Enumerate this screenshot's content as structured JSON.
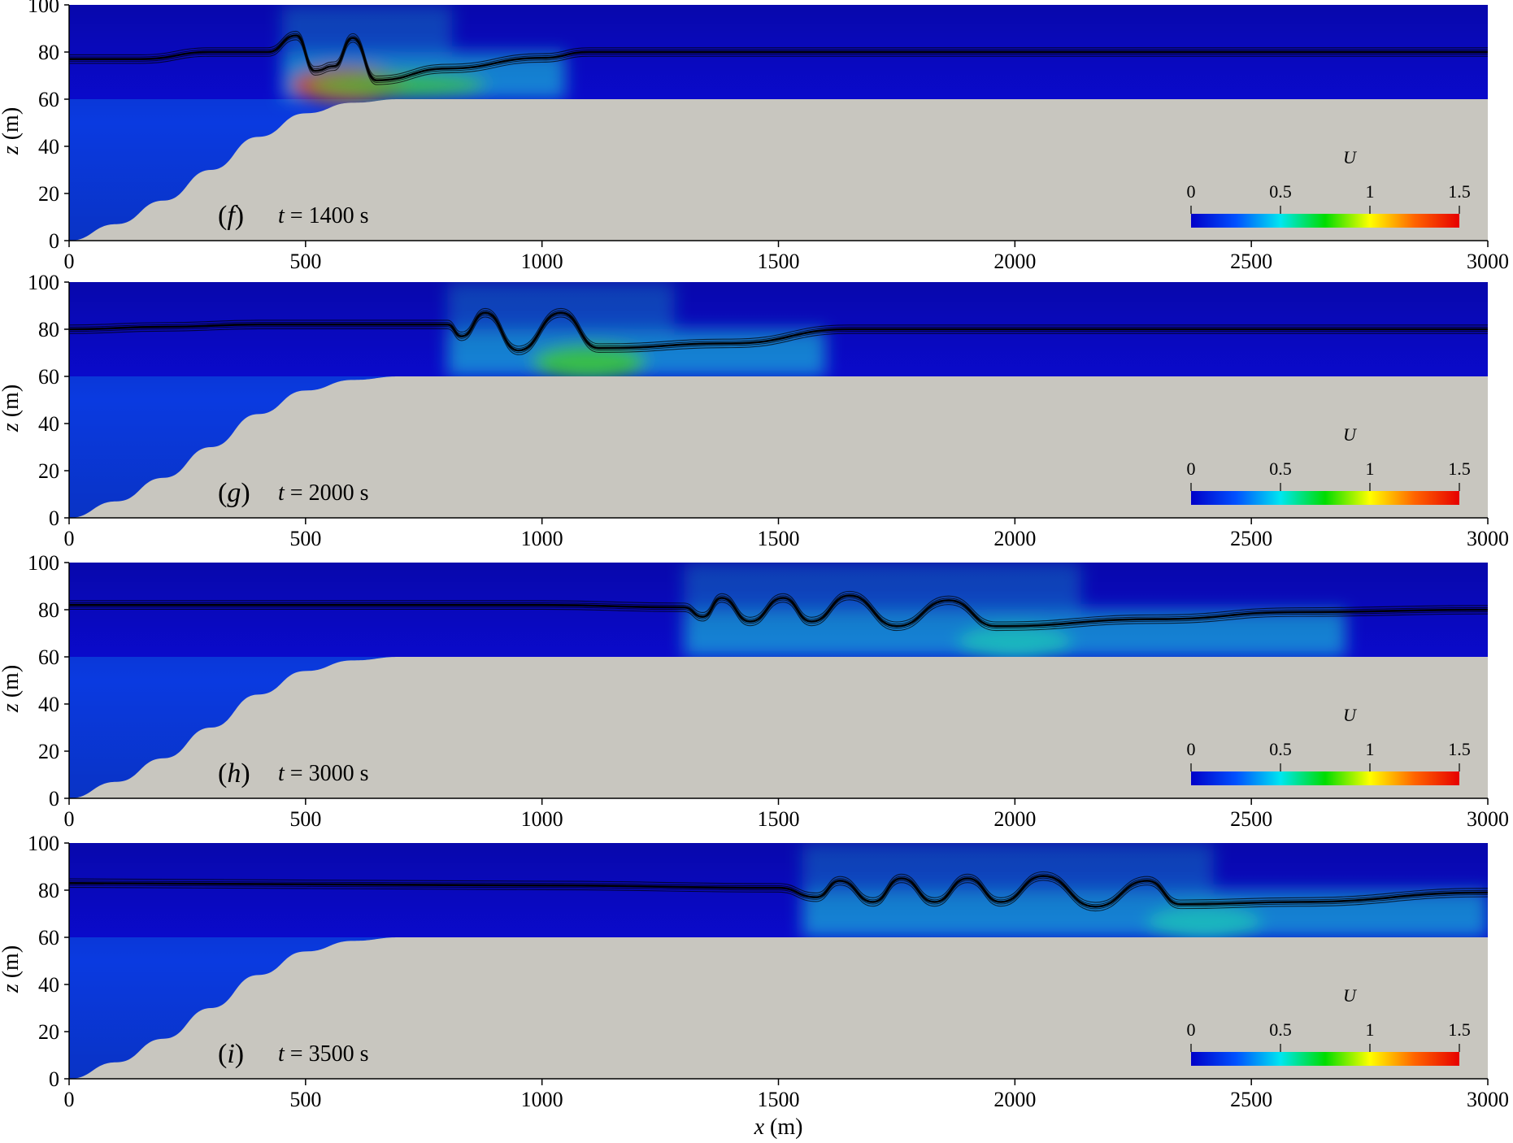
{
  "chart_data": [
    {
      "type": "heatmap",
      "panel_label": "f",
      "time_text": "t = 1400 s",
      "xlabel": "",
      "ylabel": "z (m)",
      "xlim": [
        0,
        3000
      ],
      "ylim": [
        0,
        100
      ],
      "xticks": [
        "0",
        "500",
        "1000",
        "1500",
        "2000",
        "2500",
        "3000"
      ],
      "yticks": [
        "0",
        "20",
        "40",
        "60",
        "80",
        "100"
      ],
      "colorbar": {
        "title": "U",
        "ticks": [
          "0",
          "0.5",
          "1",
          "1.5"
        ],
        "range": [
          0,
          1.5
        ]
      },
      "interface": {
        "x": [
          0,
          150,
          300,
          420,
          480,
          520,
          560,
          600,
          650,
          800,
          1000,
          1100,
          3000
        ],
        "z": [
          77,
          77,
          80,
          80,
          87,
          72,
          74,
          86,
          68,
          73,
          77.5,
          80,
          80
        ]
      },
      "high_speed_region": {
        "x_start": 450,
        "x_end": 1050,
        "peak_U": 1.3,
        "peak_x": 590
      }
    },
    {
      "type": "heatmap",
      "panel_label": "g",
      "time_text": "t = 2000 s",
      "xlabel": "",
      "ylabel": "z (m)",
      "xlim": [
        0,
        3000
      ],
      "ylim": [
        0,
        100
      ],
      "xticks": [
        "0",
        "500",
        "1000",
        "1500",
        "2000",
        "2500",
        "3000"
      ],
      "yticks": [
        "0",
        "20",
        "40",
        "60",
        "80",
        "100"
      ],
      "colorbar": {
        "title": "U",
        "ticks": [
          "0",
          "0.5",
          "1",
          "1.5"
        ],
        "range": [
          0,
          1.5
        ]
      },
      "interface": {
        "x": [
          0,
          200,
          400,
          800,
          830,
          880,
          950,
          1040,
          1120,
          1400,
          1650,
          3000
        ],
        "z": [
          80,
          81,
          82,
          82,
          77,
          87,
          71,
          87,
          72,
          74,
          80,
          80
        ]
      },
      "high_speed_region": {
        "x_start": 800,
        "x_end": 1600,
        "peak_U": 0.9,
        "peak_x": 1100
      }
    },
    {
      "type": "heatmap",
      "panel_label": "h",
      "time_text": "t = 3000 s",
      "xlabel": "",
      "ylabel": "z (m)",
      "xlim": [
        0,
        3000
      ],
      "ylim": [
        0,
        100
      ],
      "xticks": [
        "0",
        "500",
        "1000",
        "1500",
        "2000",
        "2500",
        "3000"
      ],
      "yticks": [
        "0",
        "20",
        "40",
        "60",
        "80",
        "100"
      ],
      "colorbar": {
        "title": "U",
        "ticks": [
          "0",
          "0.5",
          "1",
          "1.5"
        ],
        "range": [
          0,
          1.5
        ]
      },
      "interface": {
        "x": [
          0,
          1000,
          1300,
          1340,
          1380,
          1440,
          1510,
          1570,
          1650,
          1750,
          1860,
          1960,
          2300,
          2600,
          3000
        ],
        "z": [
          82,
          82,
          81,
          77,
          85,
          75,
          85,
          75,
          86,
          73,
          84,
          73,
          76,
          79,
          80
        ]
      },
      "high_speed_region": {
        "x_start": 1300,
        "x_end": 2700,
        "peak_U": 0.75,
        "peak_x": 2000
      }
    },
    {
      "type": "heatmap",
      "panel_label": "i",
      "time_text": "t = 3500 s",
      "xlabel": "x (m)",
      "ylabel": "z (m)",
      "xlim": [
        0,
        3000
      ],
      "ylim": [
        0,
        100
      ],
      "xticks": [
        "0",
        "500",
        "1000",
        "1500",
        "2000",
        "2500",
        "3000"
      ],
      "yticks": [
        "0",
        "20",
        "40",
        "60",
        "80",
        "100"
      ],
      "colorbar": {
        "title": "U",
        "ticks": [
          "0",
          "0.5",
          "1",
          "1.5"
        ],
        "range": [
          0,
          1.5
        ]
      },
      "interface": {
        "x": [
          0,
          1000,
          1500,
          1580,
          1630,
          1700,
          1760,
          1830,
          1900,
          1970,
          2060,
          2170,
          2280,
          2350,
          2600,
          3000
        ],
        "z": [
          83,
          82,
          81,
          77,
          84,
          75,
          85,
          75,
          85,
          75,
          86,
          73,
          84,
          74,
          75,
          79
        ]
      },
      "high_speed_region": {
        "x_start": 1550,
        "x_end": 3000,
        "peak_U": 0.7,
        "peak_x": 2400
      }
    }
  ],
  "bathymetry": {
    "x": [
      0,
      100,
      200,
      300,
      400,
      500,
      600,
      700,
      3000
    ],
    "z": [
      0,
      7,
      17,
      30,
      44,
      54,
      58.5,
      60,
      60
    ]
  },
  "colormap": {
    "stops": [
      "#0000c8",
      "#0050ff",
      "#00e6f0",
      "#00dc00",
      "#ffff00",
      "#ff6400",
      "#e60000"
    ],
    "bathymetry_fill": "#c8c6bf",
    "background_water": "#0a0ad2"
  }
}
